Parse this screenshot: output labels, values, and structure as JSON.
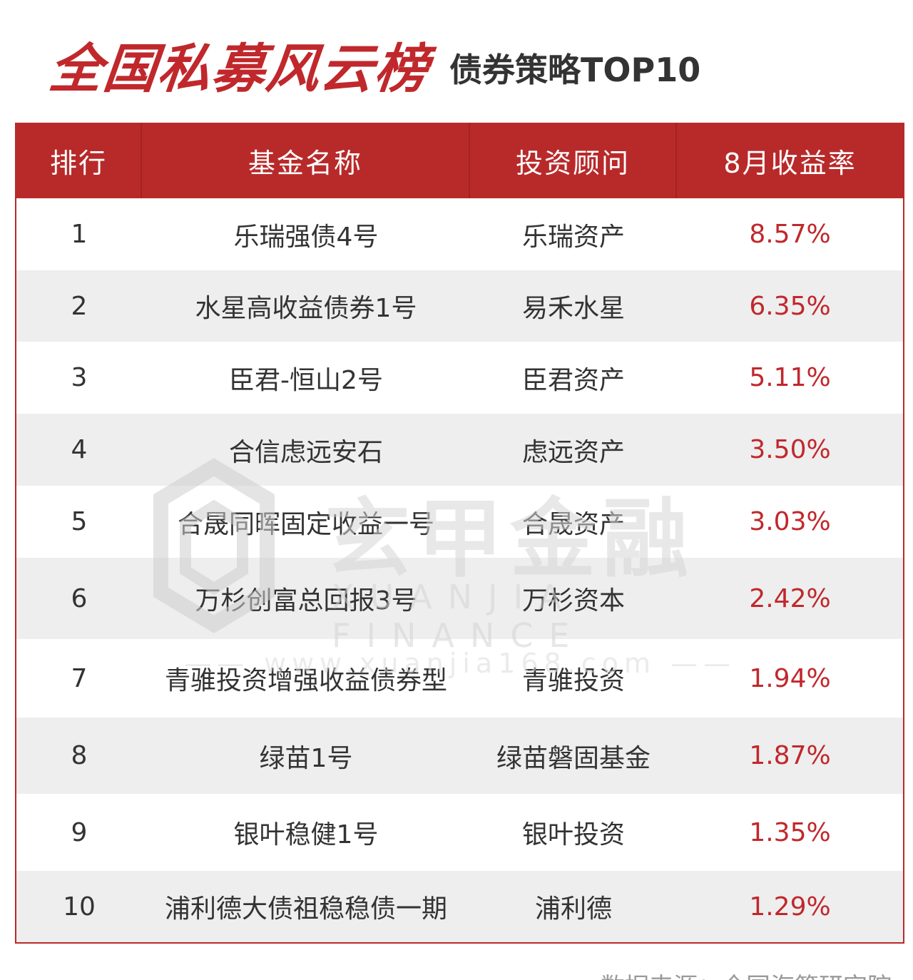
{
  "header": {
    "title": "全国私募风云榜",
    "subtitle": "债券策略TOP10"
  },
  "table": {
    "columns": [
      "排行",
      "基金名称",
      "投资顾问",
      "8月收益率"
    ],
    "rows": [
      {
        "rank": "1",
        "fund": "乐瑞强债4号",
        "advisor": "乐瑞资产",
        "return": "8.57%"
      },
      {
        "rank": "2",
        "fund": "水星高收益债券1号",
        "advisor": "易禾水星",
        "return": "6.35%"
      },
      {
        "rank": "3",
        "fund": "臣君-恒山2号",
        "advisor": "臣君资产",
        "return": "5.11%"
      },
      {
        "rank": "4",
        "fund": "合信虑远安石",
        "advisor": "虑远资产",
        "return": "3.50%"
      },
      {
        "rank": "5",
        "fund": "合晟同晖固定收益一号",
        "advisor": "合晟资产",
        "return": "3.03%"
      },
      {
        "rank": "6",
        "fund": "万杉创富总回报3号",
        "advisor": "万杉资本",
        "return": "2.42%"
      },
      {
        "rank": "7",
        "fund": "青骓投资增强收益债券型",
        "advisor": "青骓投资",
        "return": "1.94%"
      },
      {
        "rank": "8",
        "fund": "绿苗1号",
        "advisor": "绿苗磐固基金",
        "return": "1.87%"
      },
      {
        "rank": "9",
        "fund": "银叶稳健1号",
        "advisor": "银叶投资",
        "return": "1.35%"
      },
      {
        "rank": "10",
        "fund": "浦利德大债祖稳稳债一期",
        "advisor": "浦利德",
        "return": "1.29%"
      }
    ]
  },
  "watermark": {
    "brand": "玄甲金融",
    "sub": "XUANJIA FINANCE",
    "url": "—— www.xuanjia168.com ——"
  },
  "footer": {
    "source": "数据来源：全国海筛研究院"
  },
  "colors": {
    "accent": "#b82a2a",
    "title_red": "#c0282c",
    "row_alt": "#eeeeee",
    "return_red": "#c0282c"
  }
}
